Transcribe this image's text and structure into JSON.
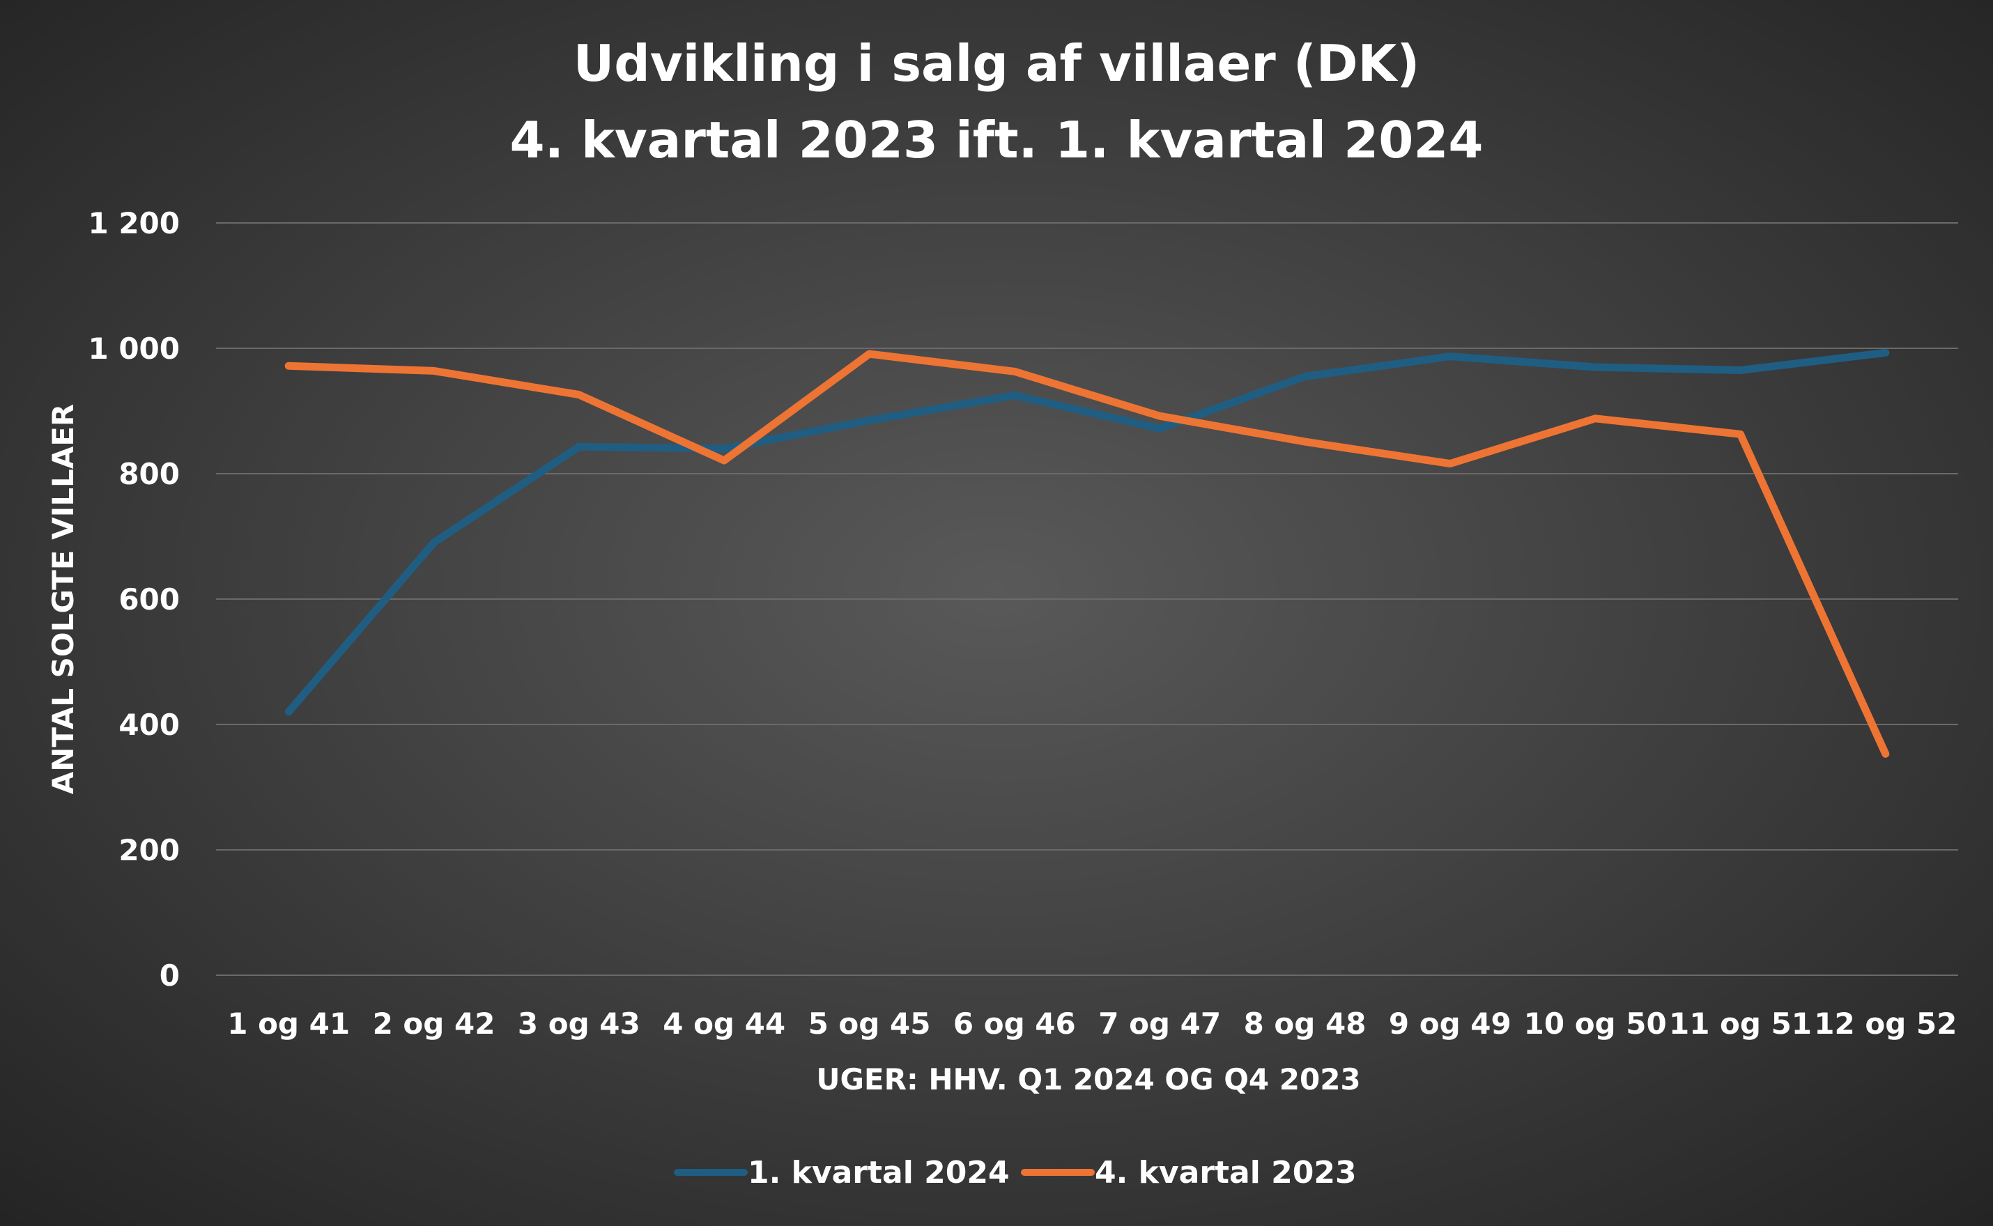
{
  "chart_data": {
    "type": "line",
    "title_lines": [
      "Udvikling i salg af villaer (DK)",
      "4. kvartal 2023 ift. 1. kvartal 2024"
    ],
    "xlabel": "UGER: HHV. Q1 2024 OG Q4 2023",
    "ylabel": "ANTAL SOLGTE VILLAER",
    "ylim": [
      0,
      1200
    ],
    "yticks": [
      0,
      200,
      400,
      600,
      800,
      1000,
      1200
    ],
    "ytick_labels": [
      "0",
      "200",
      "400",
      "600",
      "800",
      "1 000",
      "1 200"
    ],
    "grid": true,
    "legend_position": "bottom",
    "categories": [
      "1 og 41",
      "2 og 42",
      "3 og 43",
      "4 og 44",
      "5 og 45",
      "6 og 46",
      "7 og 47",
      "8 og 48",
      "9 og 49",
      "10 og 50",
      "11 og 51",
      "12 og 52"
    ],
    "series": [
      {
        "name": "1. kvartal 2024",
        "color": "#1f5e82",
        "values": [
          420,
          690,
          843,
          840,
          885,
          925,
          872,
          955,
          987,
          970,
          965,
          993
        ]
      },
      {
        "name": "4. kvartal 2023",
        "color": "#ee7434",
        "values": [
          972,
          964,
          926,
          821,
          991,
          963,
          892,
          851,
          816,
          888,
          863,
          353
        ]
      }
    ]
  },
  "colors": {
    "text": "#ffffff",
    "grid": "#6a6a6a"
  }
}
